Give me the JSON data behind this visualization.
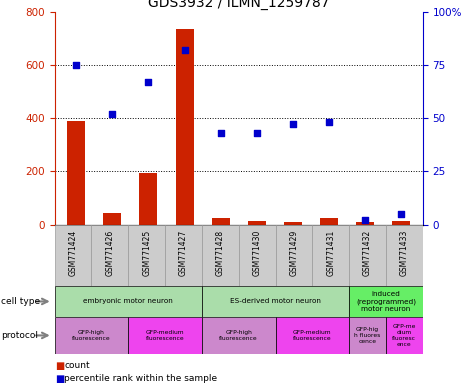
{
  "title": "GDS3932 / ILMN_1259787",
  "samples": [
    "GSM771424",
    "GSM771426",
    "GSM771425",
    "GSM771427",
    "GSM771428",
    "GSM771430",
    "GSM771429",
    "GSM771431",
    "GSM771432",
    "GSM771433"
  ],
  "counts": [
    390,
    45,
    195,
    735,
    25,
    15,
    10,
    25,
    10,
    15
  ],
  "percentile_ranks": [
    75,
    52,
    67,
    82,
    43,
    43,
    47,
    48,
    2,
    5
  ],
  "ylim_left": [
    0,
    800
  ],
  "ylim_right": [
    0,
    100
  ],
  "yticks_left": [
    0,
    200,
    400,
    600,
    800
  ],
  "yticks_right": [
    0,
    25,
    50,
    75,
    100
  ],
  "bar_color": "#cc2200",
  "dot_color": "#0000cc",
  "cell_types": [
    {
      "label": "embryonic motor neuron",
      "start": 0,
      "end": 4,
      "color": "#aaddaa"
    },
    {
      "label": "ES-derived motor neuron",
      "start": 4,
      "end": 8,
      "color": "#aaddaa"
    },
    {
      "label": "induced\n(reprogrammed)\nmotor neuron",
      "start": 8,
      "end": 10,
      "color": "#66ee66"
    }
  ],
  "protocols": [
    {
      "label": "GFP-high\nfluorescence",
      "start": 0,
      "end": 2,
      "color": "#cc88cc"
    },
    {
      "label": "GFP-medium\nfluorescence",
      "start": 2,
      "end": 4,
      "color": "#ee44ee"
    },
    {
      "label": "GFP-high\nfluorescence",
      "start": 4,
      "end": 6,
      "color": "#cc88cc"
    },
    {
      "label": "GFP-medium\nfluorescence",
      "start": 6,
      "end": 8,
      "color": "#ee44ee"
    },
    {
      "label": "GFP-hig\nh fluores\ncence",
      "start": 8,
      "end": 9,
      "color": "#cc88cc"
    },
    {
      "label": "GFP-me\ndium\nfluoresc\nence",
      "start": 9,
      "end": 10,
      "color": "#ee44ee"
    }
  ],
  "legend_count_color": "#cc2200",
  "legend_dot_color": "#0000cc",
  "title_fontsize": 10,
  "axis_fontsize": 7.5,
  "sample_bg_color": "#cccccc",
  "sample_border_color": "#999999"
}
